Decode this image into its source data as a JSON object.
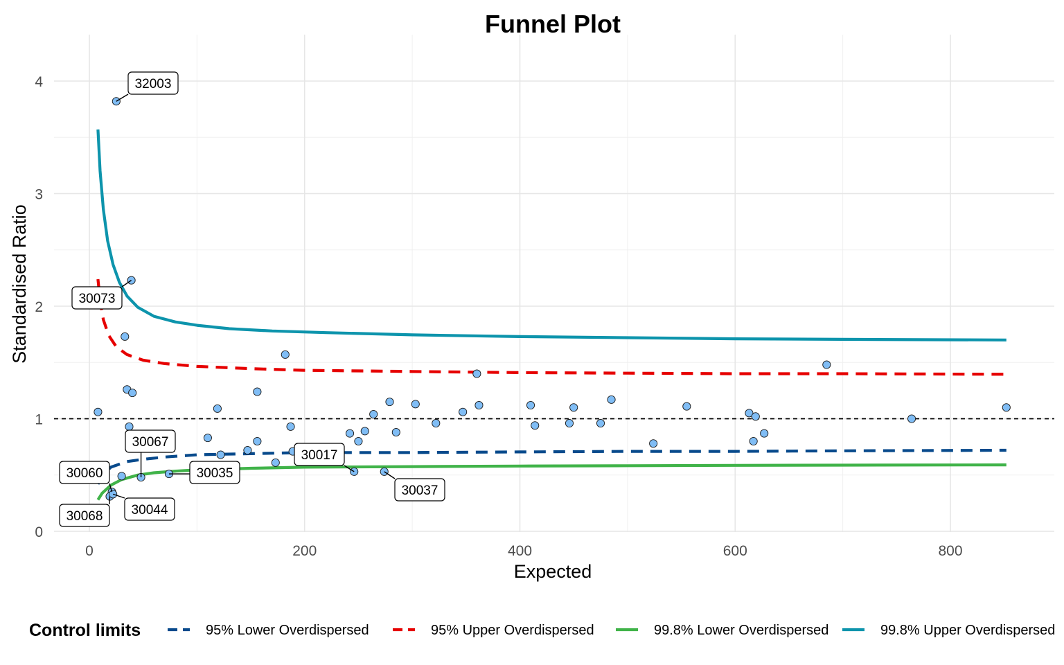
{
  "chart_data": {
    "type": "scatter",
    "title": "Funnel Plot",
    "xlabel": "Expected",
    "ylabel": "Standardised Ratio",
    "xlim": [
      -30,
      900
    ],
    "ylim": [
      0,
      4.4
    ],
    "x_ticks": [
      0,
      200,
      400,
      600,
      800
    ],
    "y_ticks": [
      0,
      1,
      2,
      3,
      4
    ],
    "grid": true,
    "reference_line": {
      "y": 1,
      "style": "dashed",
      "color": "#000000"
    },
    "points_color": "#80bdf5",
    "points": [
      {
        "x": 25,
        "y": 3.82,
        "label": "32003"
      },
      {
        "x": 39,
        "y": 2.23,
        "label": "30073"
      },
      {
        "x": 33,
        "y": 1.73
      },
      {
        "x": 35,
        "y": 1.26
      },
      {
        "x": 40,
        "y": 1.23
      },
      {
        "x": 8,
        "y": 1.06
      },
      {
        "x": 37,
        "y": 0.93
      },
      {
        "x": 30,
        "y": 0.49
      },
      {
        "x": 48,
        "y": 0.48,
        "label": "30067"
      },
      {
        "x": 21,
        "y": 0.35,
        "label": "30060"
      },
      {
        "x": 19,
        "y": 0.31,
        "label": "30068"
      },
      {
        "x": 22,
        "y": 0.33,
        "label": "30044"
      },
      {
        "x": 74,
        "y": 0.51,
        "label": "30035"
      },
      {
        "x": 110,
        "y": 0.83
      },
      {
        "x": 119,
        "y": 1.09
      },
      {
        "x": 122,
        "y": 0.68
      },
      {
        "x": 147,
        "y": 0.72
      },
      {
        "x": 156,
        "y": 0.8
      },
      {
        "x": 156,
        "y": 1.24
      },
      {
        "x": 173,
        "y": 0.61
      },
      {
        "x": 182,
        "y": 1.57
      },
      {
        "x": 187,
        "y": 0.93
      },
      {
        "x": 189,
        "y": 0.71
      },
      {
        "x": 242,
        "y": 0.87
      },
      {
        "x": 246,
        "y": 0.53,
        "label": "30017"
      },
      {
        "x": 250,
        "y": 0.8
      },
      {
        "x": 256,
        "y": 0.89
      },
      {
        "x": 264,
        "y": 1.04
      },
      {
        "x": 274,
        "y": 0.53,
        "label": "30037"
      },
      {
        "x": 279,
        "y": 1.15
      },
      {
        "x": 285,
        "y": 0.88
      },
      {
        "x": 303,
        "y": 1.13
      },
      {
        "x": 322,
        "y": 0.96
      },
      {
        "x": 347,
        "y": 1.06
      },
      {
        "x": 360,
        "y": 1.4
      },
      {
        "x": 362,
        "y": 1.12
      },
      {
        "x": 410,
        "y": 1.12
      },
      {
        "x": 414,
        "y": 0.94
      },
      {
        "x": 446,
        "y": 0.96
      },
      {
        "x": 450,
        "y": 1.1
      },
      {
        "x": 475,
        "y": 0.96
      },
      {
        "x": 485,
        "y": 1.17
      },
      {
        "x": 524,
        "y": 0.78
      },
      {
        "x": 555,
        "y": 1.11
      },
      {
        "x": 613,
        "y": 1.05
      },
      {
        "x": 617,
        "y": 0.8
      },
      {
        "x": 619,
        "y": 1.02
      },
      {
        "x": 627,
        "y": 0.87
      },
      {
        "x": 685,
        "y": 1.48
      },
      {
        "x": 764,
        "y": 1.0
      },
      {
        "x": 852,
        "y": 1.1
      }
    ],
    "series": [
      {
        "name": "95% Lower Overdispersed",
        "color": "#084a8c",
        "style": "dashed",
        "x": [
          8,
          12,
          20,
          35,
          50,
          70,
          100,
          150,
          200,
          300,
          400,
          500,
          600,
          700,
          852
        ],
        "y": [
          0.42,
          0.5,
          0.57,
          0.62,
          0.64,
          0.66,
          0.68,
          0.69,
          0.7,
          0.7,
          0.705,
          0.71,
          0.71,
          0.715,
          0.72
        ]
      },
      {
        "name": "95% Upper Overdispersed",
        "color": "#e60000",
        "style": "dashed",
        "x": [
          8,
          10,
          13,
          18,
          25,
          35,
          50,
          70,
          100,
          150,
          200,
          300,
          400,
          500,
          600,
          700,
          852
        ],
        "y": [
          2.24,
          2.05,
          1.88,
          1.74,
          1.64,
          1.57,
          1.52,
          1.49,
          1.465,
          1.445,
          1.43,
          1.42,
          1.41,
          1.405,
          1.4,
          1.4,
          1.395
        ]
      },
      {
        "name": "99.8% Lower Overdispersed",
        "color": "#40b349",
        "style": "solid",
        "x": [
          8,
          12,
          20,
          30,
          45,
          60,
          80,
          100,
          150,
          200,
          300,
          400,
          500,
          600,
          700,
          852
        ],
        "y": [
          0.28,
          0.34,
          0.41,
          0.46,
          0.5,
          0.52,
          0.535,
          0.545,
          0.56,
          0.57,
          0.575,
          0.58,
          0.583,
          0.586,
          0.588,
          0.59
        ]
      },
      {
        "name": "99.8% Upper Overdispersed",
        "color": "#0d94ac",
        "style": "solid",
        "x": [
          8,
          10,
          13,
          17,
          22,
          28,
          35,
          45,
          60,
          80,
          100,
          130,
          170,
          220,
          300,
          400,
          500,
          600,
          700,
          852
        ],
        "y": [
          3.57,
          3.2,
          2.86,
          2.58,
          2.37,
          2.21,
          2.09,
          1.99,
          1.91,
          1.86,
          1.83,
          1.8,
          1.78,
          1.765,
          1.745,
          1.73,
          1.72,
          1.71,
          1.705,
          1.7
        ]
      }
    ],
    "legend": {
      "title": "Control limits",
      "position": "bottom"
    }
  }
}
